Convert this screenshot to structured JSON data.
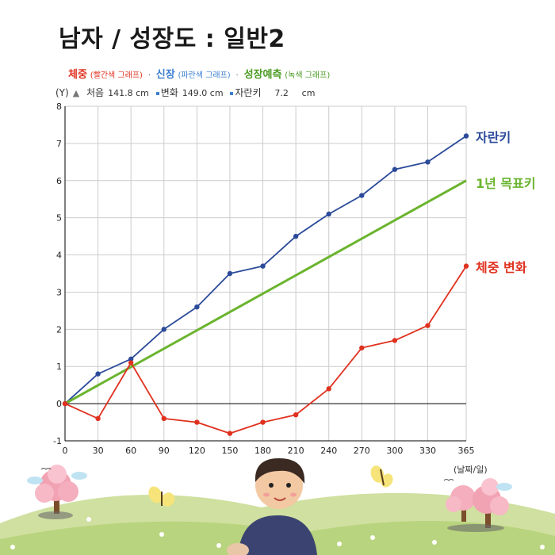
{
  "page": {
    "title": "남자 / 성장도 : 일반2"
  },
  "legend": {
    "weight_main": "체중",
    "weight_sub": "(빨간색 그래프)",
    "height_main": "신장",
    "height_sub": "(파란색 그래프)",
    "forecast_main": "성장예측",
    "forecast_sub": "(녹색 그래프)",
    "separator": "·"
  },
  "info": {
    "y_unit": "(Y)",
    "first_label": "처음",
    "first_value": "141.8 cm",
    "change_label": "변화",
    "change_value": "149.0 cm",
    "growth_label": "자란키",
    "growth_value": "7.2",
    "growth_unit": "cm"
  },
  "end_labels": {
    "height": "자란키",
    "target": "1년 목표키",
    "weight": "체중 변화"
  },
  "x_unit": "(날짜/일)",
  "colors": {
    "height": "#2b4a9a",
    "target": "#6ab42e",
    "weight": "#e0311f",
    "grid": "#cccccc",
    "axis": "#000000"
  },
  "icons": [
    "up-arrow-icon",
    "tree-icon",
    "butterfly-icon",
    "boy-illustration",
    "flower-icon"
  ],
  "chart_data": {
    "type": "line",
    "x": [
      0,
      30,
      60,
      90,
      120,
      150,
      180,
      210,
      240,
      270,
      300,
      330,
      365
    ],
    "xlim": [
      0,
      365
    ],
    "ylim": [
      -1,
      8
    ],
    "x_ticks": [
      "0",
      "30",
      "60",
      "90",
      "120",
      "150",
      "180",
      "210",
      "240",
      "270",
      "300",
      "330",
      "365"
    ],
    "y_ticks": [
      "-1",
      "0",
      "1",
      "2",
      "3",
      "4",
      "5",
      "6",
      "7",
      "8"
    ],
    "grid": true,
    "series": [
      {
        "name": "자란키",
        "color": "#2b4a9a",
        "markers": true,
        "values": [
          0,
          0.8,
          1.2,
          2.0,
          2.6,
          3.5,
          3.7,
          4.5,
          5.1,
          5.6,
          6.3,
          6.5,
          7.2
        ]
      },
      {
        "name": "1년 목표키",
        "color": "#6ab42e",
        "markers": false,
        "x": [
          0,
          365
        ],
        "values": [
          0,
          6.0
        ]
      },
      {
        "name": "체중 변화",
        "color": "#e0311f",
        "markers": true,
        "values": [
          0,
          -0.4,
          1.1,
          -0.4,
          -0.5,
          -0.8,
          -0.5,
          -0.3,
          0.4,
          1.5,
          1.7,
          2.1,
          3.7
        ]
      }
    ]
  }
}
